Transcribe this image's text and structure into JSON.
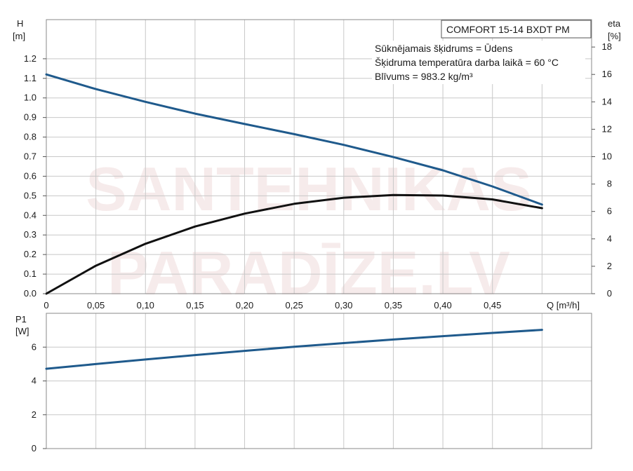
{
  "chart_data": [
    {
      "type": "line",
      "y_left_label": "H",
      "y_left_unit": "[m]",
      "y_right_label": "eta",
      "y_right_unit": "[%]",
      "xlabel": "Q [m³/h]",
      "xlim": [
        0,
        0.55
      ],
      "ylim_left": [
        0,
        1.4
      ],
      "ylim_right": [
        0,
        20
      ],
      "x_ticks": [
        "0",
        "0,05",
        "0,10",
        "0,15",
        "0,20",
        "0,25",
        "0,30",
        "0,35",
        "0,40",
        "0,45"
      ],
      "x_tick_values": [
        0,
        0.05,
        0.1,
        0.15,
        0.2,
        0.25,
        0.3,
        0.35,
        0.4,
        0.45
      ],
      "y_left_ticks": [
        "0.0",
        "0.1",
        "0.2",
        "0.3",
        "0.4",
        "0.5",
        "0.6",
        "0.7",
        "0.8",
        "0.9",
        "1.0",
        "1.1",
        "1.2"
      ],
      "y_left_tick_values": [
        0,
        0.1,
        0.2,
        0.3,
        0.4,
        0.5,
        0.6,
        0.7,
        0.8,
        0.9,
        1.0,
        1.1,
        1.2
      ],
      "y_right_ticks": [
        "0",
        "2",
        "4",
        "6",
        "8",
        "10",
        "12",
        "14",
        "16",
        "18"
      ],
      "y_right_tick_values": [
        0,
        2,
        4,
        6,
        8,
        10,
        12,
        14,
        16,
        18
      ],
      "grid": true,
      "series": [
        {
          "axis": "left",
          "color": "#1f5a8c",
          "x": [
            0,
            0.05,
            0.1,
            0.15,
            0.2,
            0.25,
            0.3,
            0.35,
            0.4,
            0.45,
            0.5
          ],
          "y": [
            1.12,
            1.045,
            0.98,
            0.92,
            0.867,
            0.815,
            0.76,
            0.698,
            0.63,
            0.548,
            0.455
          ]
        },
        {
          "axis": "right",
          "color": "#111111",
          "x": [
            0,
            0.05,
            0.1,
            0.15,
            0.2,
            0.25,
            0.3,
            0.35,
            0.4,
            0.45,
            0.5
          ],
          "y": [
            0,
            2.04,
            3.64,
            4.9,
            5.84,
            6.56,
            7.0,
            7.2,
            7.16,
            6.88,
            6.24
          ]
        }
      ]
    },
    {
      "type": "line",
      "y_label": "P1",
      "y_unit": "[W]",
      "xlim": [
        0,
        0.55
      ],
      "ylim": [
        0,
        8
      ],
      "y_ticks": [
        "0",
        "2",
        "4",
        "6"
      ],
      "y_tick_values": [
        0,
        2,
        4,
        6
      ],
      "grid": true,
      "series": [
        {
          "color": "#1f5a8c",
          "x": [
            0,
            0.05,
            0.1,
            0.15,
            0.2,
            0.25,
            0.3,
            0.35,
            0.4,
            0.45,
            0.5
          ],
          "y": [
            4.72,
            5.0,
            5.27,
            5.53,
            5.78,
            6.02,
            6.24,
            6.45,
            6.65,
            6.84,
            7.02
          ]
        }
      ]
    }
  ],
  "info": {
    "model": "COMFORT 15-14 BXDT PM",
    "line1": "Sūknējamais šķidrums = Ūdens",
    "line2": "Šķidruma temperatūra darba laikā = 60 °C",
    "line3": "Blīvums = 983.2 kg/m³"
  },
  "watermark": {
    "line1": "SANTEHNIKAS",
    "line2": "PARADĪZE.LV"
  }
}
